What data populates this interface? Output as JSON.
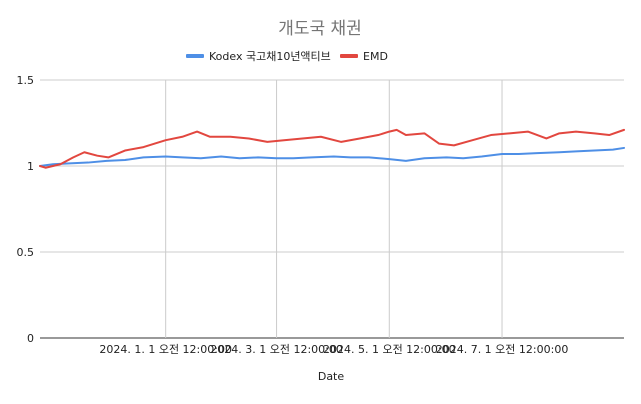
{
  "chart_data": {
    "type": "line",
    "title": "개도국 채권",
    "xlabel": "Date",
    "ylabel": "",
    "ylim": [
      0,
      1.5
    ],
    "yticks": [
      "0",
      "0.5",
      "1",
      "1.5"
    ],
    "xticks": [
      {
        "date": "2024-01-01",
        "label": "2024. 1. 1 오전 12:00:00"
      },
      {
        "date": "2024-03-01",
        "label": "2024. 3. 1 오전 12:00:00"
      },
      {
        "date": "2024-05-01",
        "label": "2024. 5. 1 오전 12:00:00"
      },
      {
        "date": "2024-07-01",
        "label": "2024. 7. 1 오전 12:00:00"
      }
    ],
    "xlim": [
      "2023-10-25",
      "2024-09-05"
    ],
    "grid": true,
    "legend": "top",
    "colors": {
      "kodex": "#4e8fe6",
      "emd": "#e2473f"
    },
    "series": [
      {
        "name": "Kodex 국고채10년액티브",
        "color": "#4e8fe6",
        "points": [
          [
            "2023-10-25",
            1.0
          ],
          [
            "2023-11-01",
            1.01
          ],
          [
            "2023-11-10",
            1.015
          ],
          [
            "2023-11-20",
            1.02
          ],
          [
            "2023-11-30",
            1.03
          ],
          [
            "2023-12-10",
            1.035
          ],
          [
            "2023-12-20",
            1.05
          ],
          [
            "2024-01-01",
            1.055
          ],
          [
            "2024-01-10",
            1.05
          ],
          [
            "2024-01-20",
            1.045
          ],
          [
            "2024-01-31",
            1.055
          ],
          [
            "2024-02-10",
            1.045
          ],
          [
            "2024-02-20",
            1.05
          ],
          [
            "2024-03-01",
            1.045
          ],
          [
            "2024-03-10",
            1.045
          ],
          [
            "2024-03-20",
            1.05
          ],
          [
            "2024-04-01",
            1.055
          ],
          [
            "2024-04-10",
            1.05
          ],
          [
            "2024-04-20",
            1.05
          ],
          [
            "2024-05-01",
            1.04
          ],
          [
            "2024-05-10",
            1.03
          ],
          [
            "2024-05-20",
            1.045
          ],
          [
            "2024-06-01",
            1.05
          ],
          [
            "2024-06-10",
            1.045
          ],
          [
            "2024-06-20",
            1.055
          ],
          [
            "2024-07-01",
            1.07
          ],
          [
            "2024-07-10",
            1.07
          ],
          [
            "2024-07-20",
            1.075
          ],
          [
            "2024-08-01",
            1.08
          ],
          [
            "2024-08-10",
            1.085
          ],
          [
            "2024-08-20",
            1.09
          ],
          [
            "2024-08-30",
            1.095
          ],
          [
            "2024-09-05",
            1.105
          ]
        ]
      },
      {
        "name": "EMD",
        "color": "#e2473f",
        "points": [
          [
            "2023-10-25",
            1.0
          ],
          [
            "2023-10-28",
            0.99
          ],
          [
            "2023-11-05",
            1.01
          ],
          [
            "2023-11-12",
            1.05
          ],
          [
            "2023-11-18",
            1.08
          ],
          [
            "2023-11-25",
            1.06
          ],
          [
            "2023-12-01",
            1.05
          ],
          [
            "2023-12-10",
            1.09
          ],
          [
            "2023-12-20",
            1.11
          ],
          [
            "2024-01-01",
            1.15
          ],
          [
            "2024-01-10",
            1.17
          ],
          [
            "2024-01-18",
            1.2
          ],
          [
            "2024-01-25",
            1.17
          ],
          [
            "2024-02-05",
            1.17
          ],
          [
            "2024-02-15",
            1.16
          ],
          [
            "2024-02-25",
            1.14
          ],
          [
            "2024-03-05",
            1.15
          ],
          [
            "2024-03-15",
            1.16
          ],
          [
            "2024-03-25",
            1.17
          ],
          [
            "2024-04-05",
            1.14
          ],
          [
            "2024-04-15",
            1.16
          ],
          [
            "2024-04-25",
            1.18
          ],
          [
            "2024-05-01",
            1.2
          ],
          [
            "2024-05-05",
            1.21
          ],
          [
            "2024-05-10",
            1.18
          ],
          [
            "2024-05-20",
            1.19
          ],
          [
            "2024-05-28",
            1.13
          ],
          [
            "2024-06-05",
            1.12
          ],
          [
            "2024-06-15",
            1.15
          ],
          [
            "2024-06-25",
            1.18
          ],
          [
            "2024-07-05",
            1.19
          ],
          [
            "2024-07-15",
            1.2
          ],
          [
            "2024-07-25",
            1.16
          ],
          [
            "2024-08-01",
            1.19
          ],
          [
            "2024-08-10",
            1.2
          ],
          [
            "2024-08-20",
            1.19
          ],
          [
            "2024-08-28",
            1.18
          ],
          [
            "2024-09-05",
            1.21
          ]
        ]
      }
    ]
  }
}
